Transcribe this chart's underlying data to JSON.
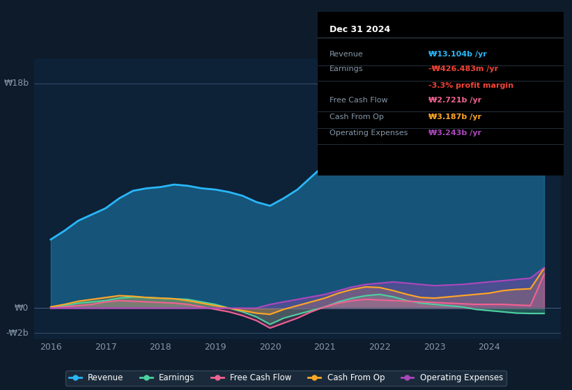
{
  "bg_color": "#0d1b2a",
  "plot_bg_color": "#0d2137",
  "title": "Dec 31 2024",
  "ylabel_top": "₩18b",
  "ylabel_zero": "₩0",
  "ylabel_bottom": "-₩2b",
  "xlim": [
    2015.7,
    2025.3
  ],
  "ylim": [
    -2.5,
    20
  ],
  "yticks": [
    -2,
    0,
    18
  ],
  "legend_items": [
    "Revenue",
    "Earnings",
    "Free Cash Flow",
    "Cash From Op",
    "Operating Expenses"
  ],
  "legend_colors": [
    "#29b6f6",
    "#4dd0a0",
    "#f06292",
    "#ffa726",
    "#ab47bc"
  ],
  "info_box": {
    "title": "Dec 31 2024",
    "rows": [
      {
        "label": "Revenue",
        "value": "₩13.104b /yr",
        "value_color": "#29b6f6"
      },
      {
        "label": "Earnings",
        "value": "-₩426.483m /yr",
        "value_color": "#f44336"
      },
      {
        "label": "",
        "value": "-3.3% profit margin",
        "value_color": "#f44336"
      },
      {
        "label": "Free Cash Flow",
        "value": "₩2.721b /yr",
        "value_color": "#f06292"
      },
      {
        "label": "Cash From Op",
        "value": "₩3.187b /yr",
        "value_color": "#ffa726"
      },
      {
        "label": "Operating Expenses",
        "value": "₩3.243b /yr",
        "value_color": "#ab47bc"
      }
    ]
  },
  "revenue": {
    "x": [
      2016.0,
      2016.25,
      2016.5,
      2016.75,
      2017.0,
      2017.25,
      2017.5,
      2017.75,
      2018.0,
      2018.25,
      2018.5,
      2018.75,
      2019.0,
      2019.25,
      2019.5,
      2019.75,
      2020.0,
      2020.25,
      2020.5,
      2020.75,
      2021.0,
      2021.25,
      2021.5,
      2021.75,
      2022.0,
      2022.25,
      2022.5,
      2022.75,
      2023.0,
      2023.25,
      2023.5,
      2023.75,
      2024.0,
      2024.25,
      2024.5,
      2024.75,
      2025.0
    ],
    "y": [
      5.5,
      6.2,
      7.0,
      7.5,
      8.0,
      8.8,
      9.4,
      9.6,
      9.7,
      9.9,
      9.8,
      9.6,
      9.5,
      9.3,
      9.0,
      8.5,
      8.2,
      8.8,
      9.5,
      10.5,
      11.5,
      12.5,
      13.5,
      14.2,
      15.0,
      15.8,
      16.2,
      16.5,
      16.8,
      17.0,
      16.5,
      15.5,
      14.0,
      13.5,
      13.0,
      13.1,
      13.1
    ],
    "color": "#29b6f6",
    "linewidth": 2.0
  },
  "earnings": {
    "x": [
      2016.0,
      2016.25,
      2016.5,
      2016.75,
      2017.0,
      2017.25,
      2017.5,
      2017.75,
      2018.0,
      2018.25,
      2018.5,
      2018.75,
      2019.0,
      2019.25,
      2019.5,
      2019.75,
      2020.0,
      2020.25,
      2020.5,
      2020.75,
      2021.0,
      2021.25,
      2021.5,
      2021.75,
      2022.0,
      2022.25,
      2022.5,
      2022.75,
      2023.0,
      2023.25,
      2023.5,
      2023.75,
      2024.0,
      2024.25,
      2024.5,
      2024.75,
      2025.0
    ],
    "y": [
      0.05,
      0.2,
      0.4,
      0.5,
      0.6,
      0.8,
      0.9,
      0.85,
      0.8,
      0.75,
      0.7,
      0.5,
      0.3,
      0.0,
      -0.3,
      -0.7,
      -1.3,
      -0.8,
      -0.5,
      -0.2,
      0.1,
      0.5,
      0.8,
      1.0,
      1.1,
      0.9,
      0.6,
      0.4,
      0.3,
      0.2,
      0.1,
      -0.1,
      -0.2,
      -0.3,
      -0.4,
      -0.43,
      -0.43
    ],
    "color": "#4dd0a0",
    "linewidth": 1.5
  },
  "free_cash_flow": {
    "x": [
      2016.0,
      2016.25,
      2016.5,
      2016.75,
      2017.0,
      2017.25,
      2017.5,
      2017.75,
      2018.0,
      2018.25,
      2018.5,
      2018.75,
      2019.0,
      2019.25,
      2019.5,
      2019.75,
      2020.0,
      2020.25,
      2020.5,
      2020.75,
      2021.0,
      2021.25,
      2021.5,
      2021.75,
      2022.0,
      2022.25,
      2022.5,
      2022.75,
      2023.0,
      2023.25,
      2023.5,
      2023.75,
      2024.0,
      2024.25,
      2024.5,
      2024.75,
      2025.0
    ],
    "y": [
      0.0,
      0.1,
      0.2,
      0.3,
      0.5,
      0.6,
      0.55,
      0.5,
      0.45,
      0.4,
      0.3,
      0.1,
      -0.1,
      -0.3,
      -0.6,
      -1.0,
      -1.6,
      -1.2,
      -0.8,
      -0.3,
      0.1,
      0.4,
      0.6,
      0.7,
      0.65,
      0.6,
      0.55,
      0.5,
      0.45,
      0.4,
      0.35,
      0.3,
      0.3,
      0.3,
      0.25,
      0.2,
      2.72
    ],
    "color": "#f06292",
    "linewidth": 1.5
  },
  "cash_from_op": {
    "x": [
      2016.0,
      2016.25,
      2016.5,
      2016.75,
      2017.0,
      2017.25,
      2017.5,
      2017.75,
      2018.0,
      2018.25,
      2018.5,
      2018.75,
      2019.0,
      2019.25,
      2019.5,
      2019.75,
      2020.0,
      2020.25,
      2020.5,
      2020.75,
      2021.0,
      2021.25,
      2021.5,
      2021.75,
      2022.0,
      2022.25,
      2022.5,
      2022.75,
      2023.0,
      2023.25,
      2023.5,
      2023.75,
      2024.0,
      2024.25,
      2024.5,
      2024.75,
      2025.0
    ],
    "y": [
      0.1,
      0.3,
      0.55,
      0.7,
      0.85,
      1.0,
      0.95,
      0.85,
      0.8,
      0.75,
      0.6,
      0.4,
      0.2,
      -0.0,
      -0.2,
      -0.4,
      -0.5,
      -0.1,
      0.2,
      0.5,
      0.8,
      1.2,
      1.5,
      1.7,
      1.65,
      1.4,
      1.1,
      0.85,
      0.8,
      0.9,
      1.0,
      1.1,
      1.2,
      1.4,
      1.5,
      1.55,
      3.19
    ],
    "color": "#ffa726",
    "linewidth": 1.5
  },
  "op_expenses": {
    "x": [
      2016.0,
      2016.25,
      2016.5,
      2016.75,
      2017.0,
      2017.25,
      2017.5,
      2017.75,
      2018.0,
      2018.25,
      2018.5,
      2018.75,
      2019.0,
      2019.25,
      2019.5,
      2019.75,
      2020.0,
      2020.25,
      2020.5,
      2020.75,
      2021.0,
      2021.25,
      2021.5,
      2021.75,
      2022.0,
      2022.25,
      2022.5,
      2022.75,
      2023.0,
      2023.25,
      2023.5,
      2023.75,
      2024.0,
      2024.25,
      2024.5,
      2024.75,
      2025.0
    ],
    "y": [
      0.0,
      0.0,
      0.0,
      0.0,
      0.0,
      0.0,
      0.0,
      0.0,
      0.0,
      0.0,
      0.0,
      0.0,
      0.0,
      0.0,
      0.0,
      0.0,
      0.3,
      0.5,
      0.7,
      0.9,
      1.1,
      1.4,
      1.7,
      1.9,
      2.0,
      2.1,
      2.0,
      1.9,
      1.8,
      1.85,
      1.9,
      2.0,
      2.1,
      2.2,
      2.3,
      2.4,
      3.24
    ],
    "color": "#ab47bc",
    "linewidth": 1.5
  }
}
